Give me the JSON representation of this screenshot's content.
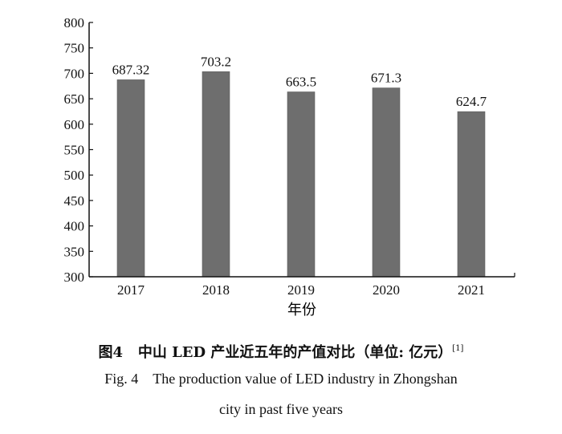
{
  "chart_data": {
    "type": "bar",
    "categories": [
      "2017",
      "2018",
      "2019",
      "2020",
      "2021"
    ],
    "values": [
      687.32,
      703.2,
      663.5,
      671.3,
      624.7
    ],
    "data_labels": [
      "687.32",
      "703.2",
      "663.5",
      "671.3",
      "624.7"
    ],
    "xlabel": "年份",
    "ylabel": "",
    "ylim": [
      300,
      800
    ],
    "yticks": [
      300,
      350,
      400,
      450,
      500,
      550,
      600,
      650,
      700,
      750,
      800
    ],
    "grid": false,
    "bar_color": "#6e6e6e"
  },
  "caption": {
    "cn_prefix": "图4",
    "cn_title": "中山 LED 产业近五年的产值对比（单位: 亿元）",
    "cn_ref": "[1]",
    "en_prefix": "Fig. 4",
    "en_line1": "The production value of LED industry in Zhongshan",
    "en_line2": "city in past five years"
  }
}
